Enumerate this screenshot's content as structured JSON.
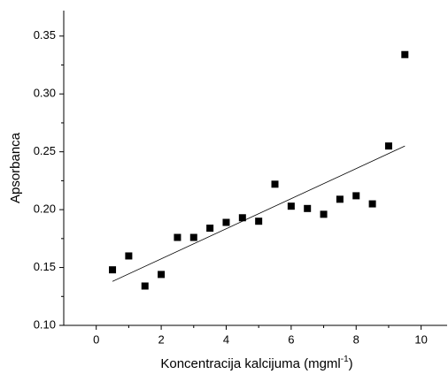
{
  "chart_data": {
    "type": "scatter",
    "xlabel": {
      "text": "Koncentracija kalcijuma (mgml",
      "sup": "-1",
      "end": ")"
    },
    "ylabel": "Apsorbanca",
    "x": [
      0.5,
      1.0,
      1.5,
      2.0,
      2.5,
      3.0,
      3.5,
      4.0,
      4.5,
      5.0,
      5.5,
      6.0,
      6.5,
      7.0,
      7.5,
      8.0,
      8.5,
      9.0,
      9.5
    ],
    "values": [
      0.148,
      0.16,
      0.134,
      0.144,
      0.176,
      0.176,
      0.184,
      0.189,
      0.193,
      0.19,
      0.222,
      0.203,
      0.201,
      0.196,
      0.209,
      0.212,
      0.205,
      0.255,
      0.334
    ],
    "color": "#000000",
    "fit": {
      "x": [
        0.5,
        9.5
      ],
      "y": [
        0.138,
        0.255
      ]
    },
    "xlim": [
      -1,
      10.8
    ],
    "xticks": [
      0,
      2,
      4,
      6,
      8,
      10
    ],
    "ylim": [
      0.1,
      0.372
    ],
    "yticks": [
      {
        "value": 0.1,
        "label": "0.10"
      },
      0.15,
      {
        "value": 0.2,
        "label": "0.20"
      },
      0.25,
      {
        "value": 0.3,
        "label": "0.30"
      },
      0.35
    ]
  }
}
